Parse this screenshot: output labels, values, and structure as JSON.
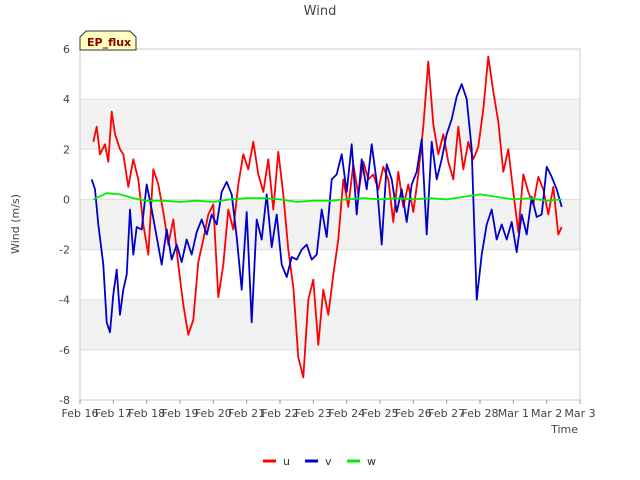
{
  "chart_data": {
    "type": "line",
    "title": "Wind",
    "xlabel": "Time",
    "ylabel": "Wind (m/s)",
    "ylim": [
      -8,
      6
    ],
    "yticks": [
      -8,
      -6,
      -4,
      -2,
      0,
      2,
      4,
      6
    ],
    "xlim": [
      0,
      15
    ],
    "x_tick_labels": [
      "Feb 16",
      "Feb 17",
      "Feb 18",
      "Feb 19",
      "Feb 20",
      "Feb 21",
      "Feb 22",
      "Feb 23",
      "Feb 24",
      "Feb 25",
      "Feb 26",
      "Feb 27",
      "Feb 28",
      "Mar 1",
      "Mar 2",
      "Mar 3"
    ],
    "badge": "EP_flux",
    "legend_position": "bottom-center",
    "grid": true,
    "series": [
      {
        "name": "u",
        "color": "#ff0000",
        "x": [
          0.4,
          0.5,
          0.6,
          0.75,
          0.85,
          0.95,
          1.05,
          1.2,
          1.3,
          1.45,
          1.6,
          1.75,
          1.9,
          2.05,
          2.2,
          2.35,
          2.5,
          2.65,
          2.8,
          2.95,
          3.1,
          3.25,
          3.4,
          3.55,
          3.7,
          3.85,
          4.0,
          4.15,
          4.3,
          4.45,
          4.6,
          4.75,
          4.9,
          5.05,
          5.2,
          5.35,
          5.5,
          5.65,
          5.8,
          5.95,
          6.1,
          6.25,
          6.4,
          6.55,
          6.7,
          6.85,
          7.0,
          7.15,
          7.3,
          7.45,
          7.6,
          7.75,
          7.9,
          8.05,
          8.2,
          8.35,
          8.5,
          8.65,
          8.8,
          8.95,
          9.1,
          9.25,
          9.4,
          9.55,
          9.7,
          9.85,
          10.0,
          10.15,
          10.3,
          10.45,
          10.6,
          10.75,
          10.9,
          11.05,
          11.2,
          11.35,
          11.5,
          11.65,
          11.8,
          11.95,
          12.1,
          12.25,
          12.4,
          12.55,
          12.7,
          12.85,
          13.0,
          13.15,
          13.3,
          13.45,
          13.6,
          13.75,
          13.9,
          14.05,
          14.2,
          14.35,
          14.45
        ],
        "values": [
          2.3,
          2.9,
          1.8,
          2.2,
          1.5,
          3.5,
          2.6,
          2.0,
          1.8,
          0.5,
          1.6,
          0.8,
          -1.0,
          -2.2,
          1.2,
          0.6,
          -0.5,
          -1.8,
          -0.8,
          -2.6,
          -4.2,
          -5.4,
          -4.8,
          -2.5,
          -1.6,
          -0.6,
          -0.2,
          -3.9,
          -2.6,
          -0.4,
          -1.2,
          0.6,
          1.8,
          1.2,
          2.3,
          1.0,
          0.3,
          1.6,
          -0.4,
          1.9,
          0.2,
          -2.0,
          -3.5,
          -6.3,
          -7.1,
          -4.0,
          -3.2,
          -5.8,
          -3.6,
          -4.6,
          -3.0,
          -1.6,
          0.8,
          -0.3,
          1.4,
          0.2,
          1.5,
          0.8,
          1.0,
          0.4,
          1.3,
          0.8,
          -0.9,
          1.1,
          -0.3,
          0.6,
          -0.5,
          1.0,
          2.9,
          5.5,
          3.0,
          1.8,
          2.6,
          1.5,
          0.8,
          2.9,
          1.2,
          2.3,
          1.6,
          2.1,
          3.6,
          5.7,
          4.3,
          3.1,
          1.1,
          2.0,
          0.3,
          -1.3,
          1.0,
          0.3,
          -0.2,
          0.9,
          0.4,
          -0.6,
          0.5,
          -1.4,
          -1.1
        ]
      },
      {
        "name": "v",
        "color": "#0000cc",
        "x": [
          0.35,
          0.45,
          0.55,
          0.7,
          0.8,
          0.9,
          1.0,
          1.1,
          1.2,
          1.3,
          1.4,
          1.5,
          1.6,
          1.7,
          1.85,
          2.0,
          2.15,
          2.3,
          2.45,
          2.6,
          2.75,
          2.9,
          3.05,
          3.2,
          3.35,
          3.5,
          3.65,
          3.8,
          3.95,
          4.1,
          4.25,
          4.4,
          4.55,
          4.7,
          4.85,
          5.0,
          5.15,
          5.3,
          5.45,
          5.6,
          5.75,
          5.9,
          6.05,
          6.2,
          6.35,
          6.5,
          6.65,
          6.8,
          6.95,
          7.1,
          7.25,
          7.4,
          7.55,
          7.7,
          7.85,
          8.0,
          8.15,
          8.3,
          8.45,
          8.6,
          8.75,
          8.9,
          9.05,
          9.2,
          9.35,
          9.5,
          9.65,
          9.8,
          9.95,
          10.1,
          10.25,
          10.4,
          10.55,
          10.7,
          10.85,
          11.0,
          11.15,
          11.3,
          11.45,
          11.6,
          11.75,
          11.9,
          12.05,
          12.2,
          12.35,
          12.5,
          12.65,
          12.8,
          12.95,
          13.1,
          13.25,
          13.4,
          13.55,
          13.7,
          13.85,
          14.0,
          14.15,
          14.3,
          14.45
        ],
        "values": [
          0.8,
          0.4,
          -1.0,
          -2.6,
          -4.9,
          -5.3,
          -3.8,
          -2.8,
          -4.6,
          -3.6,
          -3.0,
          -0.4,
          -2.2,
          -1.1,
          -1.2,
          0.6,
          -0.4,
          -1.5,
          -2.6,
          -1.2,
          -2.4,
          -1.8,
          -2.5,
          -1.6,
          -2.2,
          -1.3,
          -0.8,
          -1.4,
          -0.6,
          -1.0,
          0.3,
          0.7,
          0.2,
          -1.5,
          -3.6,
          -0.5,
          -4.9,
          -0.8,
          -1.6,
          0.2,
          -1.9,
          -0.6,
          -2.6,
          -3.1,
          -2.3,
          -2.4,
          -2.0,
          -1.8,
          -2.4,
          -2.2,
          -0.4,
          -1.5,
          0.8,
          1.0,
          1.8,
          0.3,
          2.2,
          -0.6,
          1.6,
          0.4,
          2.2,
          0.7,
          -1.8,
          1.4,
          0.8,
          -0.5,
          0.4,
          -0.9,
          0.6,
          1.1,
          2.4,
          -1.4,
          2.3,
          0.8,
          1.6,
          2.6,
          3.2,
          4.1,
          4.6,
          4.0,
          2.0,
          -4.0,
          -2.2,
          -1.0,
          -0.4,
          -1.6,
          -1.0,
          -1.6,
          -0.9,
          -2.1,
          -0.6,
          -1.4,
          0.1,
          -0.7,
          -0.6,
          1.3,
          0.9,
          0.4,
          -0.3
        ]
      },
      {
        "name": "w",
        "color": "#00ee00",
        "x": [
          0.4,
          0.8,
          1.2,
          1.6,
          2.0,
          2.5,
          3.0,
          3.5,
          4.0,
          4.5,
          5.0,
          5.5,
          6.0,
          6.5,
          7.0,
          7.5,
          8.0,
          8.5,
          9.0,
          9.5,
          10.0,
          10.5,
          11.0,
          11.5,
          12.0,
          12.5,
          13.0,
          13.5,
          14.0,
          14.45
        ],
        "values": [
          0.0,
          0.25,
          0.2,
          0.05,
          -0.05,
          -0.05,
          -0.1,
          -0.05,
          -0.1,
          0.0,
          0.05,
          0.05,
          0.0,
          -0.1,
          -0.05,
          -0.05,
          0.0,
          0.05,
          0.0,
          0.05,
          0.0,
          0.05,
          0.0,
          0.1,
          0.2,
          0.1,
          0.0,
          0.05,
          -0.05,
          0.0
        ]
      }
    ]
  }
}
